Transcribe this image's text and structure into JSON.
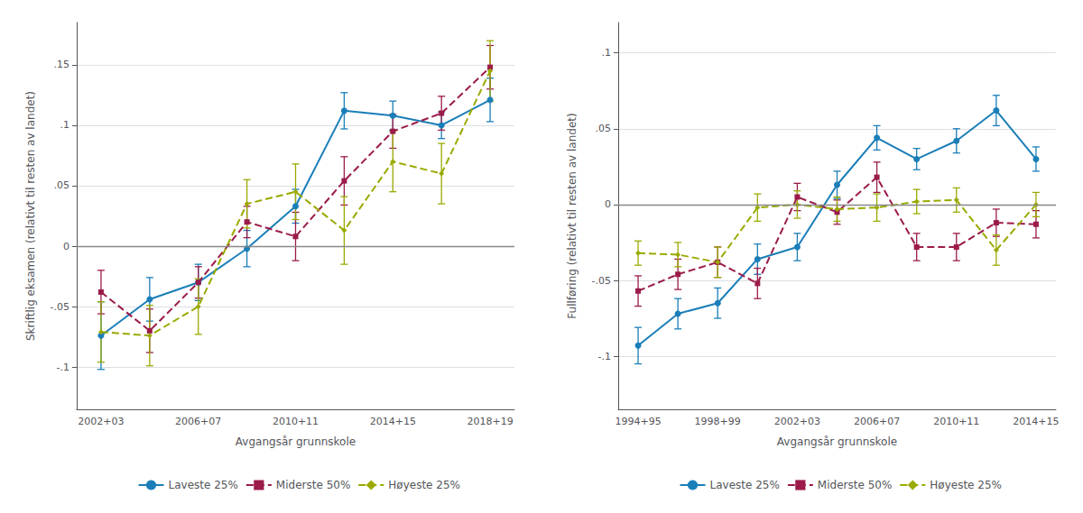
{
  "chart_data": [
    {
      "type": "line",
      "xlabel": "Avgangsår grunnskole",
      "ylabel": "Skriftlig eksamen (relativt til resten av landet)",
      "categories": [
        "2002+03",
        null,
        "2006+07",
        null,
        "2010+11",
        null,
        "2014+15",
        null,
        "2018+19"
      ],
      "ylim": [
        -0.135,
        0.185
      ],
      "yticks": [
        {
          "value": -0.1,
          "label": "-.1"
        },
        {
          "value": -0.05,
          "label": "-.05"
        },
        0,
        {
          "value": 0.05,
          "label": ".05"
        },
        {
          "value": 0.1,
          "label": ".1"
        },
        {
          "value": 0.15,
          "label": ".15"
        }
      ],
      "grid": true,
      "legend": "bottom",
      "series": [
        {
          "name": "Laveste 25%",
          "color": "#1a7eb8",
          "marker": "circle",
          "line_style": "solid",
          "values": [
            -0.074,
            -0.044,
            -0.03,
            -0.002,
            0.033,
            0.112,
            0.108,
            0.1,
            0.121
          ],
          "errors": [
            0.028,
            0.018,
            0.015,
            0.015,
            0.014,
            0.015,
            0.012,
            0.011,
            0.018
          ]
        },
        {
          "name": "Miderste 50%",
          "color": "#9b1b4b",
          "marker": "square",
          "line_style": "dashed",
          "values": [
            -0.038,
            -0.07,
            -0.03,
            0.02,
            0.008,
            0.054,
            0.095,
            0.11,
            0.148
          ],
          "errors": [
            0.018,
            0.018,
            0.013,
            0.013,
            0.02,
            0.02,
            0.014,
            0.014,
            0.018
          ]
        },
        {
          "name": "Høyeste 25%",
          "color": "#9aaa00",
          "marker": "diamond",
          "line_style": "dashed",
          "values": [
            -0.071,
            -0.074,
            -0.05,
            0.035,
            0.045,
            0.013,
            0.07,
            0.06,
            0.145
          ],
          "errors": [
            0.025,
            0.025,
            0.023,
            0.02,
            0.023,
            0.028,
            0.025,
            0.025,
            0.025
          ]
        }
      ]
    },
    {
      "type": "line",
      "xlabel": "Avgangsår grunnskole",
      "ylabel": "Fullføring (relativt til resten av landet)",
      "categories": [
        "1994+95",
        null,
        "1998+99",
        null,
        "2002+03",
        null,
        "2006+07",
        null,
        "2010+11",
        null,
        "2014+15"
      ],
      "ylim": [
        -0.135,
        0.12
      ],
      "yticks": [
        {
          "value": -0.1,
          "label": "-.1"
        },
        {
          "value": -0.05,
          "label": "-.05"
        },
        0,
        {
          "value": 0.05,
          "label": ".05"
        },
        {
          "value": 0.1,
          "label": ".1"
        }
      ],
      "grid": true,
      "legend": "bottom",
      "series": [
        {
          "name": "Laveste 25%",
          "color": "#1a7eb8",
          "marker": "circle",
          "line_style": "solid",
          "values": [
            -0.093,
            -0.072,
            -0.065,
            -0.036,
            -0.028,
            0.013,
            0.044,
            0.03,
            0.042,
            0.062,
            0.03
          ],
          "errors": [
            0.012,
            0.01,
            0.01,
            0.01,
            0.009,
            0.009,
            0.008,
            0.007,
            0.008,
            0.01,
            0.008
          ]
        },
        {
          "name": "Miderste 50%",
          "color": "#9b1b4b",
          "marker": "square",
          "line_style": "dashed",
          "values": [
            -0.057,
            -0.046,
            -0.038,
            -0.052,
            0.005,
            -0.005,
            0.018,
            -0.028,
            -0.028,
            -0.012,
            -0.013
          ],
          "errors": [
            0.01,
            0.01,
            0.01,
            0.01,
            0.009,
            0.008,
            0.01,
            0.009,
            0.009,
            0.009,
            0.009
          ]
        },
        {
          "name": "Høyeste 25%",
          "color": "#9aaa00",
          "marker": "diamond",
          "line_style": "dashed",
          "values": [
            -0.032,
            -0.033,
            -0.038,
            -0.002,
            0.0,
            -0.003,
            -0.002,
            0.002,
            0.003,
            -0.03,
            0.0
          ],
          "errors": [
            0.008,
            0.008,
            0.01,
            0.009,
            0.009,
            0.008,
            0.009,
            0.008,
            0.008,
            0.01,
            0.008
          ]
        }
      ]
    }
  ]
}
